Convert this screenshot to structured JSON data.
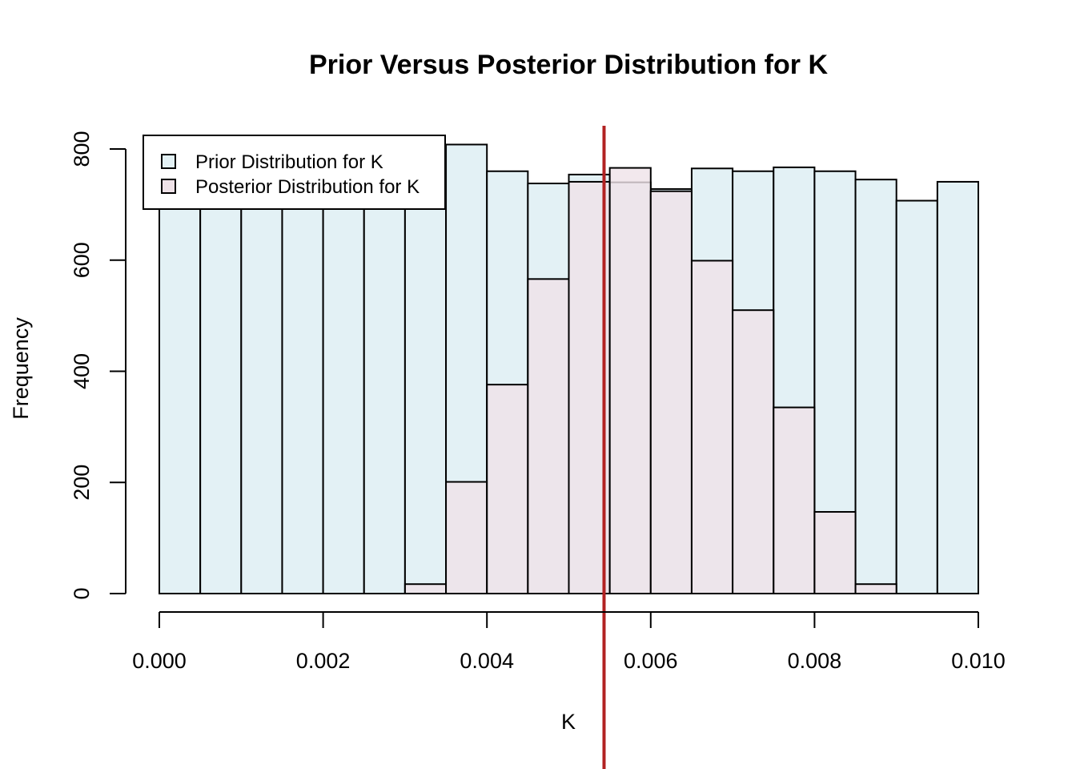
{
  "chart_data": {
    "type": "bar",
    "title": "Prior Versus Posterior Distribution for K",
    "xlabel": "K",
    "ylabel": "Frequency",
    "xlim": [
      0,
      0.01
    ],
    "ylim": [
      0,
      800
    ],
    "bin_edges": [
      0.0,
      0.0005,
      0.001,
      0.0015,
      0.002,
      0.0025,
      0.003,
      0.0035,
      0.004,
      0.0045,
      0.005,
      0.0055,
      0.006,
      0.0065,
      0.007,
      0.0075,
      0.008,
      0.0085,
      0.009,
      0.0095,
      0.01
    ],
    "x_ticks": [
      "0.000",
      "0.002",
      "0.004",
      "0.006",
      "0.008",
      "0.010"
    ],
    "y_ticks": [
      "0",
      "200",
      "400",
      "600",
      "800"
    ],
    "series": [
      {
        "name": "Prior Distribution for K",
        "color": "#e3f1f5",
        "values": [
          720,
          745,
          760,
          740,
          755,
          735,
          750,
          808,
          760,
          738,
          754,
          740,
          728,
          765,
          760,
          767,
          760,
          745,
          707,
          741
        ]
      },
      {
        "name": "Posterior Distribution for K",
        "color": "#efe2e8",
        "values": [
          0,
          0,
          0,
          0,
          0,
          0,
          17,
          201,
          376,
          566,
          741,
          766,
          724,
          599,
          510,
          335,
          147,
          17,
          0,
          0
        ]
      }
    ],
    "reference_line": {
      "x": 0.00543,
      "color": "#b22222"
    },
    "legend_position": "top-left",
    "grid": false
  }
}
